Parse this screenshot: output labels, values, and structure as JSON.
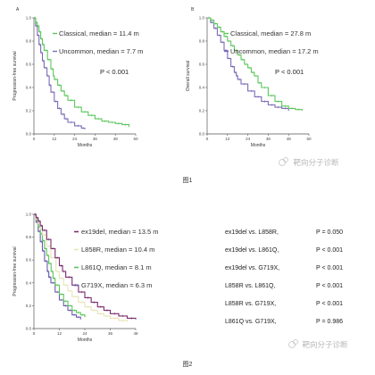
{
  "figure1": {
    "caption": "图1",
    "watermark": "靶向分子诊断",
    "panels": [
      {
        "letter": "A",
        "ylabel": "Progression-free survival",
        "xlabel": "Months",
        "p_label": "P < 0.001",
        "x_ticks": [
          "0",
          "12",
          "24",
          "36",
          "48",
          "60"
        ],
        "y_ticks": [
          "0.0",
          "0.2",
          "0.4",
          "0.6",
          "0.8",
          "1.0"
        ]
      },
      {
        "letter": "B",
        "ylabel": "Overall survival",
        "xlabel": "Months",
        "p_label": "P < 0.001",
        "x_ticks": [
          "0",
          "12",
          "24",
          "36",
          "48",
          "60"
        ],
        "y_ticks": [
          "0.0",
          "0.2",
          "0.4",
          "0.6",
          "0.8",
          "1.0"
        ]
      }
    ]
  },
  "figure2": {
    "caption": "图2",
    "watermark": "靶向分子诊断",
    "comparisons": [
      {
        "pair": "ex19del vs. L858R,",
        "p": "P = 0.050"
      },
      {
        "pair": "ex19del vs. L861Q,",
        "p": "P < 0.001"
      },
      {
        "pair": "ex19del vs. G719X,",
        "p": "P < 0.001"
      },
      {
        "pair": "L858R vs. L861Q,",
        "p": "P < 0.001"
      },
      {
        "pair": "L858R vs. G719X,",
        "p": "P < 0.001"
      },
      {
        "pair": "L861Q vs. G719X,",
        "p": "P = 0.986"
      }
    ]
  },
  "chart_data": [
    {
      "type": "line",
      "xlabel": "Months",
      "ylabel": "Progression-free survival",
      "xlim": [
        0,
        60
      ],
      "ylim": [
        0,
        1
      ],
      "series": [
        {
          "name": "Classical, median = 11.4 m",
          "color": "#5cc65c",
          "x": [
            0,
            1,
            2,
            3,
            4,
            5,
            6,
            8,
            10,
            11.4,
            12,
            14,
            16,
            18,
            20,
            24,
            28,
            32,
            36,
            40,
            44,
            48,
            52,
            56
          ],
          "y": [
            1.0,
            0.96,
            0.93,
            0.88,
            0.82,
            0.77,
            0.72,
            0.64,
            0.56,
            0.5,
            0.47,
            0.42,
            0.37,
            0.33,
            0.29,
            0.23,
            0.19,
            0.16,
            0.13,
            0.11,
            0.1,
            0.09,
            0.08,
            0.06
          ]
        },
        {
          "name": "Uncommon, median = 7.7 m",
          "color": "#7b6bb8",
          "x": [
            0,
            1,
            2,
            3,
            4,
            5,
            6,
            7.7,
            9,
            10,
            12,
            14,
            16,
            18,
            20,
            24,
            28,
            30
          ],
          "y": [
            1.0,
            0.93,
            0.85,
            0.77,
            0.7,
            0.63,
            0.57,
            0.5,
            0.42,
            0.36,
            0.28,
            0.22,
            0.17,
            0.13,
            0.1,
            0.07,
            0.05,
            0.04
          ]
        }
      ]
    },
    {
      "type": "line",
      "xlabel": "Months",
      "ylabel": "Overall survival",
      "xlim": [
        0,
        60
      ],
      "ylim": [
        0,
        1
      ],
      "series": [
        {
          "name": "Classical, median = 27.8 m",
          "color": "#5cc65c",
          "x": [
            0,
            2,
            4,
            6,
            8,
            10,
            12,
            14,
            16,
            18,
            20,
            22,
            24,
            26,
            27.8,
            30,
            32,
            36,
            40,
            44,
            48,
            52,
            56
          ],
          "y": [
            1.0,
            0.98,
            0.95,
            0.92,
            0.88,
            0.84,
            0.8,
            0.76,
            0.72,
            0.68,
            0.64,
            0.6,
            0.57,
            0.53,
            0.5,
            0.44,
            0.4,
            0.33,
            0.28,
            0.24,
            0.22,
            0.21,
            0.2
          ]
        },
        {
          "name": "Uncommon, median = 17.2 m",
          "color": "#7b6bb8",
          "x": [
            0,
            2,
            4,
            6,
            8,
            10,
            12,
            14,
            16,
            17.2,
            18,
            20,
            24,
            28,
            32,
            36,
            40,
            44,
            48
          ],
          "y": [
            1.0,
            0.96,
            0.91,
            0.85,
            0.79,
            0.72,
            0.65,
            0.58,
            0.53,
            0.5,
            0.47,
            0.43,
            0.37,
            0.32,
            0.28,
            0.25,
            0.23,
            0.22,
            0.2
          ]
        }
      ]
    },
    {
      "type": "line",
      "xlabel": "Months",
      "ylabel": "Progression-free survival",
      "xlim": [
        0,
        48
      ],
      "ylim": [
        0,
        1
      ],
      "series": [
        {
          "name": "ex19del, median = 13.5 m",
          "color": "#7a2c6e",
          "x": [
            0,
            1,
            2,
            3,
            4,
            6,
            8,
            10,
            12,
            13.5,
            15,
            18,
            21,
            24,
            27,
            30,
            33,
            36,
            40,
            44,
            48
          ],
          "y": [
            1.0,
            0.97,
            0.94,
            0.9,
            0.86,
            0.78,
            0.7,
            0.62,
            0.55,
            0.5,
            0.45,
            0.38,
            0.32,
            0.27,
            0.23,
            0.19,
            0.16,
            0.13,
            0.11,
            0.09,
            0.08
          ]
        },
        {
          "name": "L858R, median = 10.4 m",
          "color": "#e7e4b8",
          "x": [
            0,
            1,
            2,
            3,
            4,
            6,
            8,
            10.4,
            12,
            14,
            16,
            18,
            21,
            24,
            27,
            30,
            33,
            36,
            40,
            44
          ],
          "y": [
            1.0,
            0.96,
            0.92,
            0.87,
            0.82,
            0.72,
            0.62,
            0.5,
            0.44,
            0.38,
            0.33,
            0.28,
            0.23,
            0.19,
            0.16,
            0.13,
            0.11,
            0.09,
            0.07,
            0.06
          ]
        },
        {
          "name": "L861Q, median = 8.1 m",
          "color": "#5cc65c",
          "x": [
            0,
            1,
            2,
            3,
            4,
            5,
            6,
            7,
            8.1,
            9,
            10,
            12,
            14,
            16,
            18,
            20,
            22,
            24
          ],
          "y": [
            1.0,
            0.95,
            0.89,
            0.83,
            0.77,
            0.7,
            0.64,
            0.57,
            0.5,
            0.44,
            0.38,
            0.3,
            0.24,
            0.2,
            0.16,
            0.14,
            0.12,
            0.1
          ]
        },
        {
          "name": "G719X, median = 6.3 m",
          "color": "#6a5aad",
          "x": [
            0,
            1,
            2,
            3,
            4,
            5,
            6.3,
            7,
            8,
            10,
            12,
            14,
            16,
            18,
            20,
            22
          ],
          "y": [
            1.0,
            0.93,
            0.85,
            0.76,
            0.68,
            0.59,
            0.5,
            0.45,
            0.4,
            0.32,
            0.25,
            0.2,
            0.16,
            0.12,
            0.1,
            0.08
          ]
        }
      ]
    }
  ]
}
